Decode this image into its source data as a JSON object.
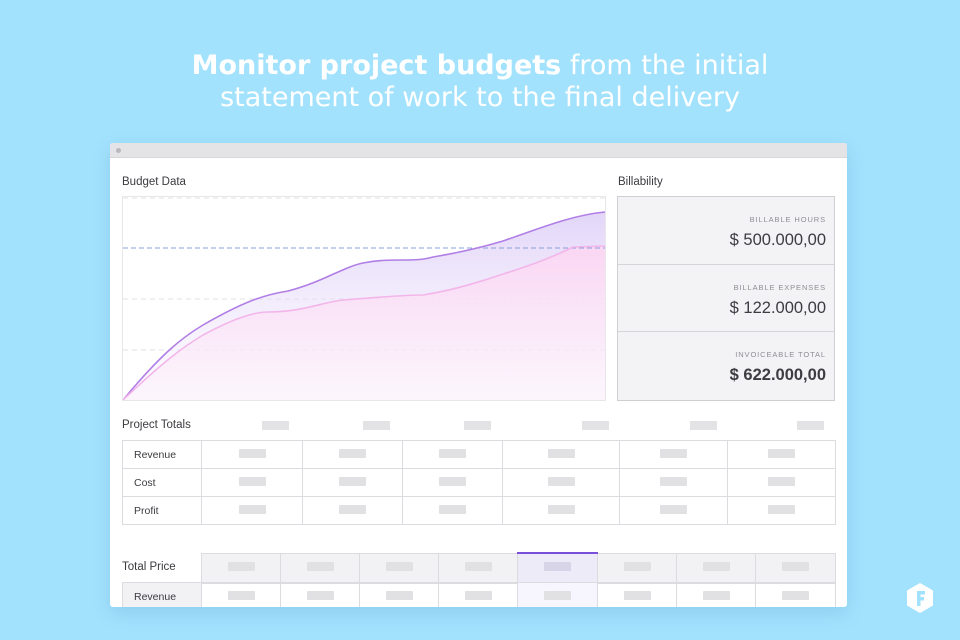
{
  "headline": {
    "bold": "Monitor project budgets",
    "rest_line1": " from the initial",
    "line2": "statement of work to the final delivery"
  },
  "budget": {
    "title": "Budget Data"
  },
  "billability": {
    "title": "Billability",
    "items": [
      {
        "label": "BILLABLE HOURS",
        "value": "$ 500.000,00"
      },
      {
        "label": "BILLABLE EXPENSES",
        "value": "$ 122.000,00"
      },
      {
        "label": "INVOICEABLE TOTAL",
        "value": "$ 622.000,00"
      }
    ]
  },
  "project_totals": {
    "title": "Project Totals",
    "rows": [
      "Revenue",
      "Cost",
      "Profit"
    ]
  },
  "total_price": {
    "title": "Total Price",
    "rows": [
      "Revenue"
    ]
  },
  "colors": {
    "background": "#a3e2fd",
    "accent": "#7a4fdc",
    "line_purple": "#b17ee6",
    "line_pink": "#f3b6ea"
  }
}
